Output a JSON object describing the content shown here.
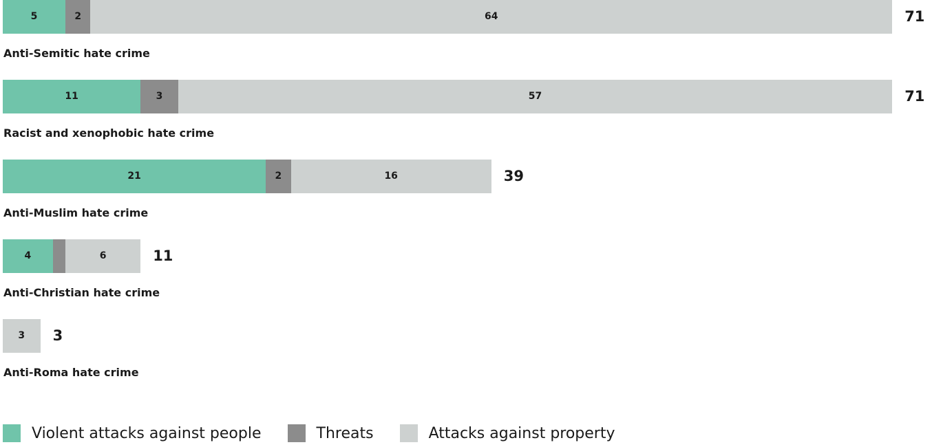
{
  "chart_data": {
    "type": "bar",
    "orientation": "horizontal",
    "stacked": true,
    "categories": [
      "Anti-Semitic hate crime",
      "Racist and xenophobic hate crime",
      "Anti-Muslim hate crime",
      "Anti-Christian hate crime",
      "Anti-Roma hate crime"
    ],
    "series": [
      {
        "name": "Violent attacks against people",
        "color": "#70c4aa",
        "values": [
          5,
          11,
          21,
          4,
          0
        ]
      },
      {
        "name": "Threats",
        "color": "#8c8c8c",
        "values": [
          2,
          3,
          2,
          1,
          0
        ]
      },
      {
        "name": "Attacks against property",
        "color": "#cdd1d0",
        "values": [
          64,
          57,
          16,
          6,
          3
        ]
      }
    ],
    "segment_labels": [
      [
        "5",
        "2",
        "64"
      ],
      [
        "11",
        "3",
        "57"
      ],
      [
        "21",
        "2",
        "16"
      ],
      [
        "4",
        "",
        "6"
      ],
      [
        "",
        "",
        "3"
      ]
    ],
    "totals": [
      71,
      71,
      39,
      11,
      3
    ],
    "xlim": [
      0,
      71
    ],
    "legend_position": "bottom-left",
    "grid": false
  }
}
